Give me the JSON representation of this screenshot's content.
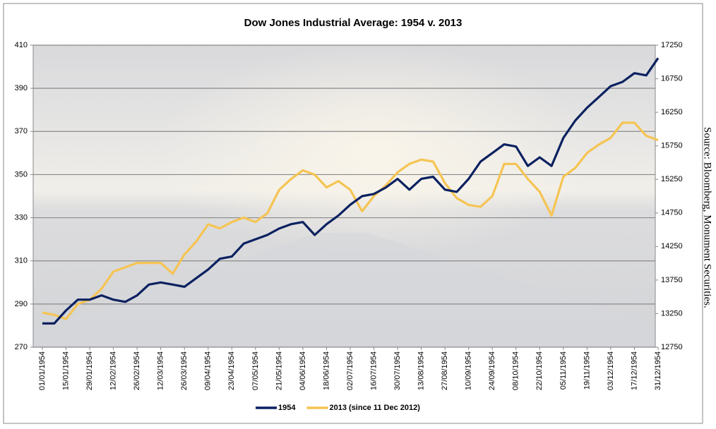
{
  "chart_data": {
    "type": "line",
    "title": "Dow Jones Industrial Average: 1954 v. 2013",
    "source": "Source: Bloomberg, Monument Securities.",
    "x": [
      "01/01/1954",
      "08/01/1954",
      "15/01/1954",
      "22/01/1954",
      "29/01/1954",
      "05/02/1954",
      "12/02/1954",
      "19/02/1954",
      "26/02/1954",
      "05/03/1954",
      "12/03/1954",
      "19/03/1954",
      "26/03/1954",
      "02/04/1954",
      "09/04/1954",
      "16/04/1954",
      "23/04/1954",
      "30/04/1954",
      "07/05/1954",
      "14/05/1954",
      "21/05/1954",
      "28/05/1954",
      "04/06/1954",
      "11/06/1954",
      "18/06/1954",
      "25/06/1954",
      "02/07/1954",
      "09/07/1954",
      "16/07/1954",
      "23/07/1954",
      "30/07/1954",
      "06/08/1954",
      "13/08/1954",
      "20/08/1954",
      "27/08/1954",
      "03/09/1954",
      "10/09/1954",
      "17/09/1954",
      "24/09/1954",
      "01/10/1954",
      "08/10/1954",
      "15/10/1954",
      "22/10/1954",
      "29/10/1954",
      "05/11/1954",
      "12/11/1954",
      "19/11/1954",
      "26/11/1954",
      "03/12/1954",
      "10/12/1954",
      "17/12/1954",
      "24/12/1954",
      "31/12/1954"
    ],
    "series": [
      {
        "name": "1954",
        "color": "#0b2160",
        "axis": "y",
        "values": [
          281,
          281,
          287,
          292,
          292,
          294,
          292,
          291,
          294,
          299,
          300,
          299,
          298,
          302,
          306,
          311,
          312,
          318,
          320,
          322,
          325,
          327,
          328,
          322,
          327,
          331,
          336,
          340,
          341,
          344,
          348,
          343,
          348,
          349,
          343,
          342,
          348,
          356,
          360,
          364,
          363,
          354,
          358,
          354,
          367,
          375,
          381,
          386,
          391,
          393,
          397,
          396,
          404
        ]
      },
      {
        "name": "2013 (since 11 Dec 2012)",
        "color": "#f5c453",
        "axis": "y2",
        "values": [
          13265,
          13230,
          13170,
          13395,
          13455,
          13620,
          13875,
          13940,
          14005,
          14005,
          14005,
          13845,
          14130,
          14325,
          14580,
          14520,
          14615,
          14680,
          14615,
          14745,
          15095,
          15255,
          15385,
          15320,
          15130,
          15225,
          15095,
          14775,
          15000,
          15160,
          15355,
          15480,
          15545,
          15515,
          15195,
          14970,
          14870,
          14840,
          15000,
          15480,
          15480,
          15255,
          15065,
          14710,
          15290,
          15420,
          15645,
          15770,
          15870,
          16095,
          16095,
          15900,
          15835
        ]
      }
    ],
    "xticks": [
      "01/01/1954",
      "15/01/1954",
      "29/01/1954",
      "12/02/1954",
      "26/02/1954",
      "12/03/1954",
      "26/03/1954",
      "09/04/1954",
      "23/04/1954",
      "07/05/1954",
      "21/05/1954",
      "04/06/1954",
      "18/06/1954",
      "02/07/1954",
      "16/07/1954",
      "30/07/1954",
      "13/08/1954",
      "27/08/1954",
      "10/09/1954",
      "24/09/1954",
      "08/10/1954",
      "22/10/1954",
      "05/11/1954",
      "19/11/1954",
      "03/12/1954",
      "17/12/1954",
      "31/12/1954"
    ],
    "ylim": [
      270,
      410
    ],
    "yticks": [
      270,
      290,
      310,
      330,
      350,
      370,
      390,
      410
    ],
    "y2lim": [
      12750,
      17250
    ],
    "y2ticks": [
      12750,
      13250,
      13750,
      14250,
      14750,
      15250,
      15750,
      16250,
      16750,
      17250
    ],
    "grid": true,
    "legend": "bottom"
  }
}
